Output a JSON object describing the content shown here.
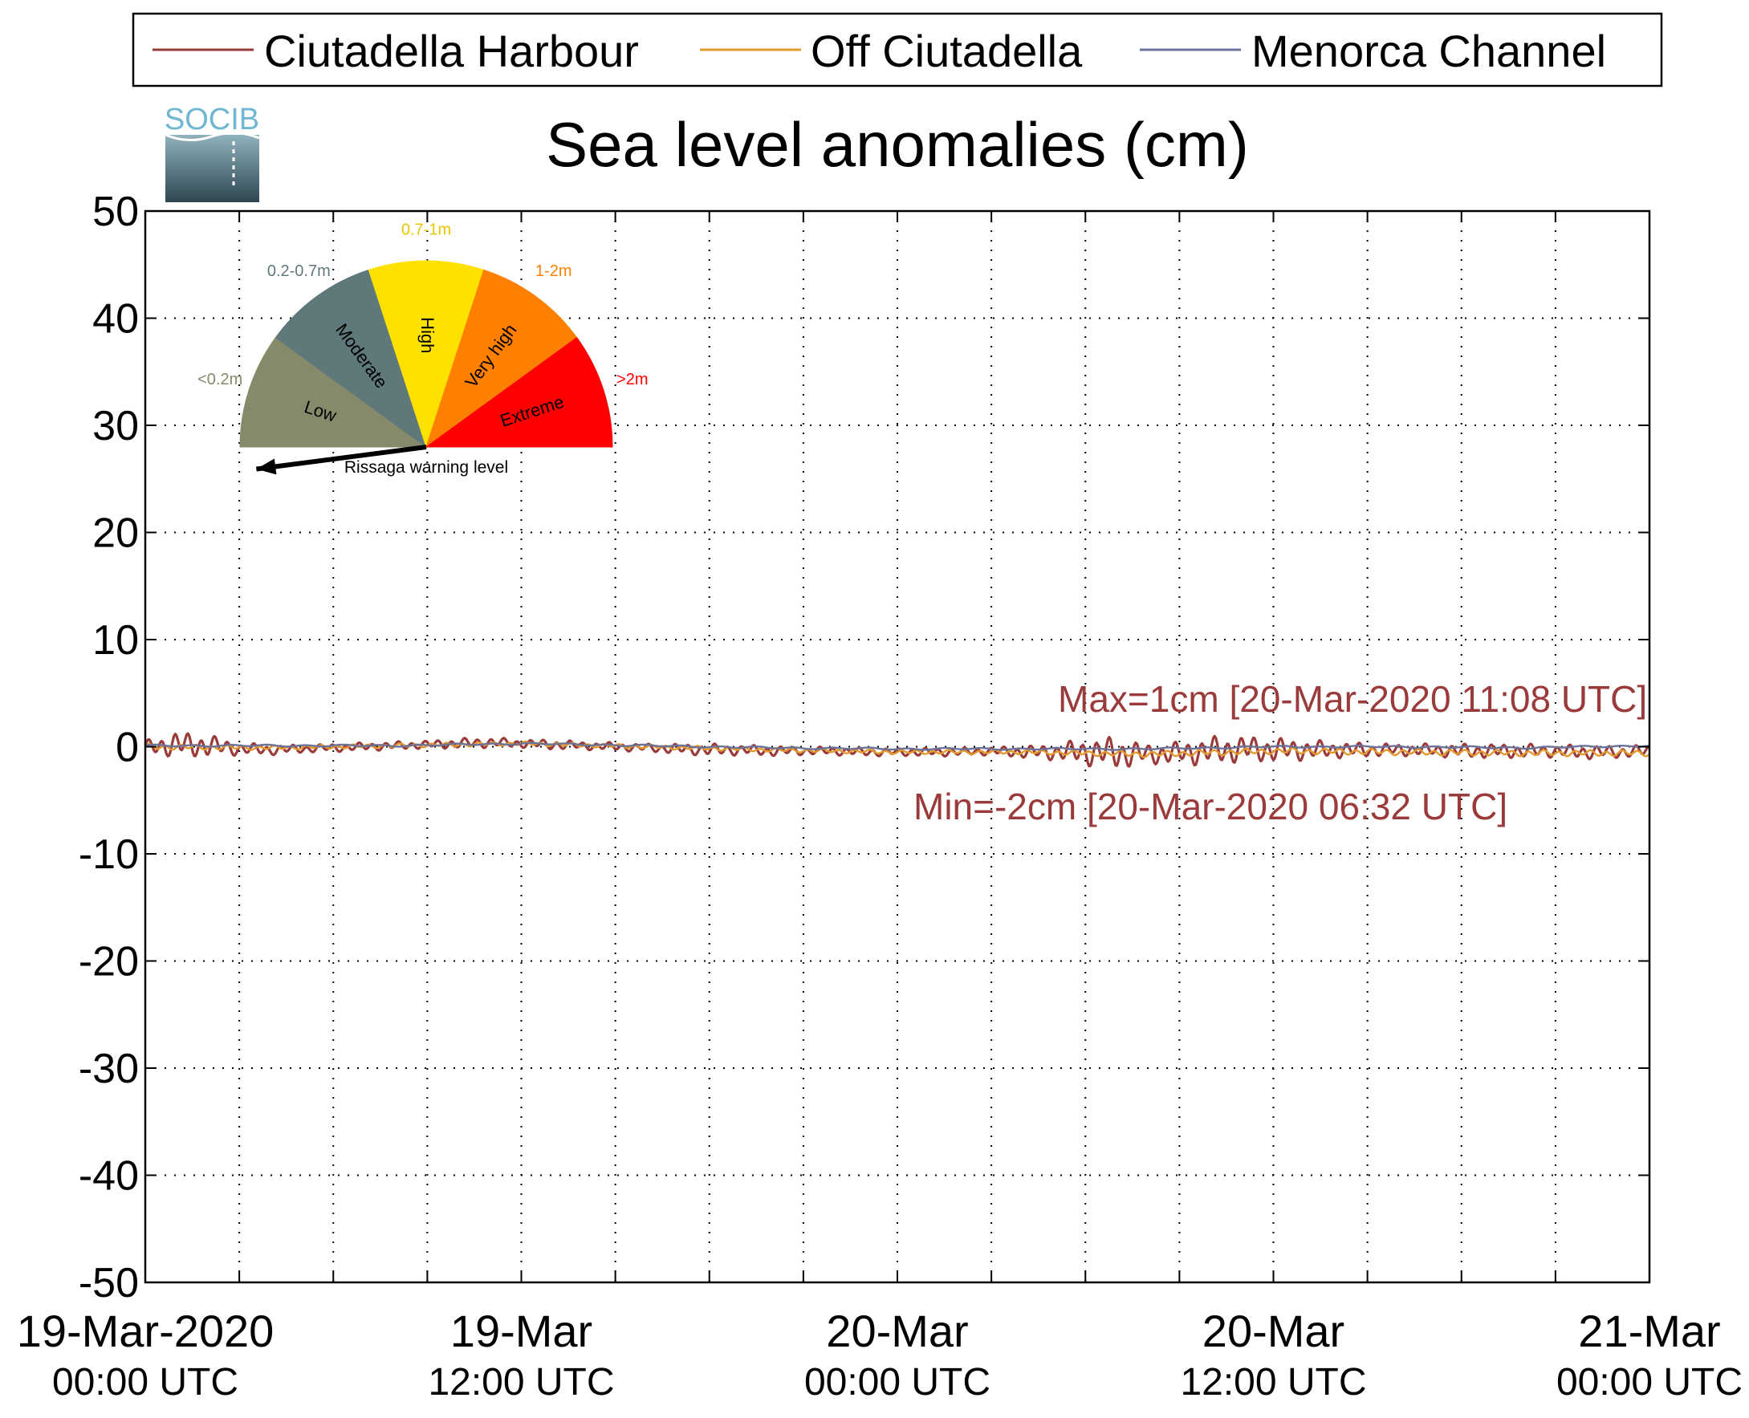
{
  "logo": {
    "text": "SOCIB"
  },
  "chart_data": {
    "type": "line",
    "title": "Sea level anomalies (cm)",
    "xlabel": "",
    "ylabel": "",
    "ylim": [
      -50,
      50
    ],
    "yticks": [
      -50,
      -40,
      -30,
      -20,
      -10,
      0,
      10,
      20,
      30,
      40,
      50
    ],
    "xlim_hours": [
      0,
      48
    ],
    "x_unit": "hours from 19-Mar-2020 00:00 UTC",
    "xtick_labels": [
      {
        "hour": 0,
        "date": "19-Mar-2020",
        "time": "00:00 UTC"
      },
      {
        "hour": 12,
        "date": "19-Mar",
        "time": "12:00 UTC"
      },
      {
        "hour": 24,
        "date": "20-Mar",
        "time": "00:00 UTC"
      },
      {
        "hour": 36,
        "date": "20-Mar",
        "time": "12:00 UTC"
      },
      {
        "hour": 48,
        "date": "21-Mar",
        "time": "00:00 UTC"
      }
    ],
    "minor_grid_hours": [
      3,
      6,
      9,
      12,
      15,
      18,
      21,
      24,
      27,
      30,
      33,
      36,
      39,
      42,
      45
    ],
    "grid": true,
    "legend_position": "top",
    "series": [
      {
        "name": "Ciutadella Harbour",
        "color": "#9b3a3a",
        "x": [
          0,
          1,
          2,
          3,
          4,
          5,
          6,
          7,
          8,
          9,
          10,
          11,
          12,
          13,
          14,
          15,
          16,
          17,
          18,
          19,
          20,
          21,
          22,
          23,
          24,
          25,
          26,
          27,
          28,
          29,
          30,
          31,
          32,
          33,
          34,
          35,
          36,
          37,
          38,
          39,
          40,
          41,
          42,
          43,
          44,
          45,
          46,
          47,
          48
        ],
        "mid": [
          0,
          0.2,
          0.1,
          -0.2,
          -0.3,
          -0.2,
          -0.1,
          0,
          0.1,
          0.2,
          0.3,
          0.4,
          0.3,
          0.2,
          0.1,
          0,
          -0.1,
          -0.2,
          -0.3,
          -0.3,
          -0.4,
          -0.4,
          -0.4,
          -0.5,
          -0.5,
          -0.5,
          -0.5,
          -0.4,
          -0.5,
          -0.5,
          -0.5,
          -0.6,
          -0.7,
          -0.6,
          -0.4,
          -0.2,
          -0.3,
          -0.3,
          -0.3,
          -0.3,
          -0.3,
          -0.3,
          -0.4,
          -0.4,
          -0.4,
          -0.4,
          -0.5,
          -0.5,
          -0.4
        ],
        "amp": [
          0.6,
          1.3,
          1.1,
          0.6,
          0.5,
          0.4,
          0.4,
          0.4,
          0.4,
          0.4,
          0.5,
          0.5,
          0.4,
          0.5,
          0.4,
          0.4,
          0.4,
          0.5,
          0.6,
          0.5,
          0.5,
          0.4,
          0.4,
          0.4,
          0.4,
          0.4,
          0.4,
          0.4,
          0.6,
          0.8,
          1.3,
          1.6,
          1.0,
          1.1,
          1.4,
          1.3,
          1.2,
          1.0,
          0.8,
          0.7,
          0.6,
          0.6,
          0.7,
          0.7,
          0.7,
          0.6,
          0.7,
          0.6,
          0.6
        ]
      },
      {
        "name": "Off Ciutadella",
        "color": "#e39a2d",
        "x": [
          0,
          4,
          8,
          12,
          16,
          20,
          24,
          28,
          32,
          36,
          40,
          44,
          48
        ],
        "mid": [
          0.0,
          -0.1,
          0.1,
          0.3,
          0.0,
          -0.3,
          -0.5,
          -0.5,
          -0.7,
          -0.4,
          -0.5,
          -0.6,
          -0.6
        ],
        "amp": [
          0.3,
          0.2,
          0.2,
          0.2,
          0.2,
          0.2,
          0.2,
          0.2,
          0.3,
          0.3,
          0.3,
          0.3,
          0.3
        ]
      },
      {
        "name": "Menorca Channel",
        "color": "#6b7399",
        "x": [
          0,
          4,
          8,
          12,
          16,
          20,
          24,
          28,
          32,
          36,
          40,
          44,
          48
        ],
        "mid": [
          0.1,
          0.1,
          0.1,
          0.3,
          0.1,
          -0.1,
          -0.2,
          -0.2,
          -0.2,
          0.0,
          0.0,
          -0.1,
          0.1
        ],
        "amp": [
          0.1,
          0.1,
          0.1,
          0.1,
          0.1,
          0.1,
          0.1,
          0.1,
          0.1,
          0.1,
          0.1,
          0.1,
          0.1
        ]
      }
    ],
    "annotations": {
      "max": "Max=1cm [20-Mar-2020 11:08 UTC]",
      "min": "Min=-2cm [20-Mar-2020 06:32 UTC]",
      "color": "#9b3a3a"
    },
    "gauge": {
      "caption": "Rissaga warning level",
      "pointer_level": "Low",
      "segments": [
        {
          "name": "Low",
          "range": "<0.2m",
          "color": "#878a6a",
          "label_color": "#878a6a"
        },
        {
          "name": "Moderate",
          "range": "0.2-0.7m",
          "color": "#5f7879",
          "label_color": "#5f7879"
        },
        {
          "name": "High",
          "range": "0.7-1m",
          "color": "#ffe100",
          "label_color": "#e6c800"
        },
        {
          "name": "Very high",
          "range": "1-2m",
          "color": "#ff8000",
          "label_color": "#ff8000"
        },
        {
          "name": "Extreme",
          "range": ">2m",
          "color": "#ff0000",
          "label_color": "#ff0000"
        }
      ]
    }
  }
}
